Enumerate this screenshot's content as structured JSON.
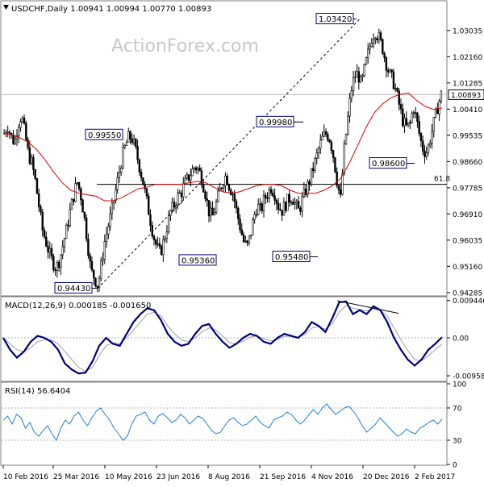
{
  "chart_data": [
    {
      "panel": "price",
      "type": "candlestick",
      "header": "USDCHF,Daily  1.00941 1.00994 1.00770 1.00893",
      "watermark": "ActionForex.com",
      "ylim": [
        0.942,
        1.04
      ],
      "yticks": [
        "1.03035",
        "1.02160",
        "1.01285",
        "1.00410",
        "0.99535",
        "0.98660",
        "0.97785",
        "0.96910",
        "0.96035",
        "0.95160",
        "0.94285"
      ],
      "last_price_label": "1.00893",
      "last_price": 1.00893,
      "xticks": [
        "10 Feb 2016",
        "25 Mar 2016",
        "10 May 2016",
        "23 Jun 2016",
        "8 Aug 2016",
        "21 Sep 2016",
        "4 Nov 2016",
        "20 Dec 2016",
        "2 Feb 2017"
      ],
      "close_path": [
        0.996,
        0.9985,
        0.995,
        0.993,
        0.999,
        1.002,
        0.996,
        0.989,
        0.986,
        0.98,
        0.972,
        0.964,
        0.96,
        0.956,
        0.953,
        0.951,
        0.954,
        0.959,
        0.964,
        0.97,
        0.975,
        0.98,
        0.976,
        0.969,
        0.96,
        0.95,
        0.948,
        0.945,
        0.952,
        0.96,
        0.965,
        0.97,
        0.976,
        0.982,
        0.988,
        0.992,
        0.995,
        0.994,
        0.99,
        0.985,
        0.98,
        0.974,
        0.968,
        0.962,
        0.958,
        0.956,
        0.96,
        0.965,
        0.97,
        0.972,
        0.975,
        0.976,
        0.979,
        0.981,
        0.983,
        0.985,
        0.984,
        0.981,
        0.976,
        0.97,
        0.968,
        0.972,
        0.976,
        0.98,
        0.982,
        0.978,
        0.976,
        0.97,
        0.965,
        0.96,
        0.958,
        0.962,
        0.968,
        0.972,
        0.97,
        0.974,
        0.976,
        0.978,
        0.976,
        0.972,
        0.97,
        0.972,
        0.974,
        0.975,
        0.972,
        0.97,
        0.974,
        0.977,
        0.98,
        0.984,
        0.988,
        0.992,
        0.995,
        0.996,
        0.994,
        0.988,
        0.98,
        0.974,
        0.99,
        1.0,
        1.01,
        1.015,
        1.016,
        1.012,
        1.018,
        1.023,
        1.028,
        1.03,
        1.028,
        1.025,
        1.02,
        1.016,
        1.014,
        1.01,
        1.005,
        1.0,
        0.998,
        0.999,
        1.005,
        1.0,
        0.994,
        0.99,
        0.99,
        0.995,
        1.0,
        1.005,
        1.009
      ],
      "ma_path": [
        0.996,
        0.9955,
        0.9945,
        0.993,
        0.9905,
        0.987,
        0.983,
        0.9795,
        0.977,
        0.976,
        0.9755,
        0.975,
        0.9735,
        0.9735,
        0.9745,
        0.976,
        0.9775,
        0.978,
        0.979,
        0.979,
        0.979,
        0.979,
        0.9795,
        0.98,
        0.9795,
        0.978,
        0.9765,
        0.976,
        0.9765,
        0.9775,
        0.9785,
        0.979,
        0.979,
        0.9785,
        0.977,
        0.976,
        0.976,
        0.976,
        0.977,
        0.9785,
        0.981,
        0.986,
        0.992,
        0.998,
        1.003,
        1.006,
        1.008,
        1.009,
        1.0095,
        1.007,
        1.005,
        1.004,
        1.0045
      ],
      "fib_level": 0.979,
      "fib_label": "61.8",
      "trend_line": {
        "from": 0.9443,
        "to": 1.0342
      },
      "annotations": [
        {
          "label": "0.94430",
          "value": 0.9443
        },
        {
          "label": "0.99550",
          "value": 0.9955
        },
        {
          "label": "0.95360",
          "value": 0.9536
        },
        {
          "label": "0.99980",
          "value": 0.9998
        },
        {
          "label": "0.95480",
          "value": 0.9548
        },
        {
          "label": "1.03420",
          "value": 1.0342
        },
        {
          "label": "0.98600",
          "value": 0.986
        }
      ]
    },
    {
      "panel": "macd",
      "type": "line",
      "header": "MACD(12,26,9) 0.000185 -0.001650",
      "ylim": [
        -0.0108,
        0.01
      ],
      "yticks": [
        "0.009446",
        "0.00",
        "-0.009588"
      ],
      "macd_path": [
        0.0,
        -0.003,
        -0.005,
        -0.0035,
        -0.001,
        0.0005,
        0.0,
        -0.001,
        -0.003,
        -0.0065,
        -0.008,
        -0.009,
        -0.0088,
        -0.006,
        -0.002,
        0.0,
        -0.0015,
        -0.002,
        0.001,
        0.004,
        0.006,
        0.0075,
        0.007,
        0.0045,
        0.001,
        -0.001,
        -0.002,
        -0.0015,
        0.001,
        0.003,
        0.0035,
        0.001,
        -0.001,
        -0.0025,
        -0.0015,
        0.0,
        0.001,
        0.0005,
        -0.001,
        -0.0015,
        0.0,
        0.001,
        0.0005,
        0.0,
        0.0015,
        0.004,
        0.003,
        0.0015,
        0.005,
        0.009,
        0.0092,
        0.006,
        0.007,
        0.006,
        0.008,
        0.007,
        0.004,
        0.0,
        -0.003,
        -0.0055,
        -0.007,
        -0.0055,
        -0.003,
        -0.0015,
        0.0002
      ],
      "signal_path": [
        0.0,
        -0.0015,
        -0.003,
        -0.0035,
        -0.0025,
        -0.001,
        -0.0005,
        -0.0005,
        -0.0015,
        -0.0035,
        -0.0055,
        -0.0075,
        -0.0085,
        -0.0075,
        -0.0045,
        -0.002,
        -0.0012,
        -0.0015,
        0.0,
        0.002,
        0.004,
        0.006,
        0.0065,
        0.0055,
        0.003,
        0.001,
        -0.0005,
        -0.001,
        0.0,
        0.0015,
        0.0025,
        0.002,
        0.0005,
        -0.0012,
        -0.0015,
        -0.0008,
        0.0002,
        0.0005,
        -0.0002,
        -0.0008,
        -0.0004,
        0.0004,
        0.0004,
        0.0002,
        0.0008,
        0.0025,
        0.0028,
        0.0022,
        0.0036,
        0.0065,
        0.0082,
        0.0075,
        0.0072,
        0.0068,
        0.0072,
        0.007,
        0.0055,
        0.0025,
        -0.0005,
        -0.0032,
        -0.0055,
        -0.0058,
        -0.0045,
        -0.003,
        -0.0016
      ]
    },
    {
      "panel": "rsi",
      "type": "line",
      "header": "RSI(14) 56.6404",
      "ylim": [
        0,
        100
      ],
      "yticks": [
        "100",
        "70",
        "30",
        "0"
      ],
      "levels": [
        70,
        30
      ],
      "rsi_path": [
        55,
        60,
        50,
        62,
        58,
        45,
        52,
        40,
        35,
        42,
        48,
        38,
        30,
        45,
        55,
        50,
        60,
        65,
        55,
        48,
        58,
        66,
        70,
        62,
        55,
        45,
        38,
        30,
        35,
        50,
        60,
        62,
        65,
        55,
        50,
        60,
        63,
        58,
        52,
        55,
        62,
        58,
        50,
        55,
        60,
        57,
        50,
        42,
        38,
        40,
        48,
        55,
        58,
        52,
        48,
        50,
        55,
        60,
        52,
        48,
        45,
        55,
        58,
        60,
        65,
        62,
        55,
        50,
        55,
        62,
        68,
        62,
        70,
        75,
        68,
        62,
        66,
        70,
        72,
        66,
        58,
        48,
        40,
        45,
        50,
        58,
        52,
        46,
        40,
        35,
        38,
        44,
        40,
        38,
        45,
        48,
        52,
        55,
        50,
        56
      ]
    }
  ]
}
